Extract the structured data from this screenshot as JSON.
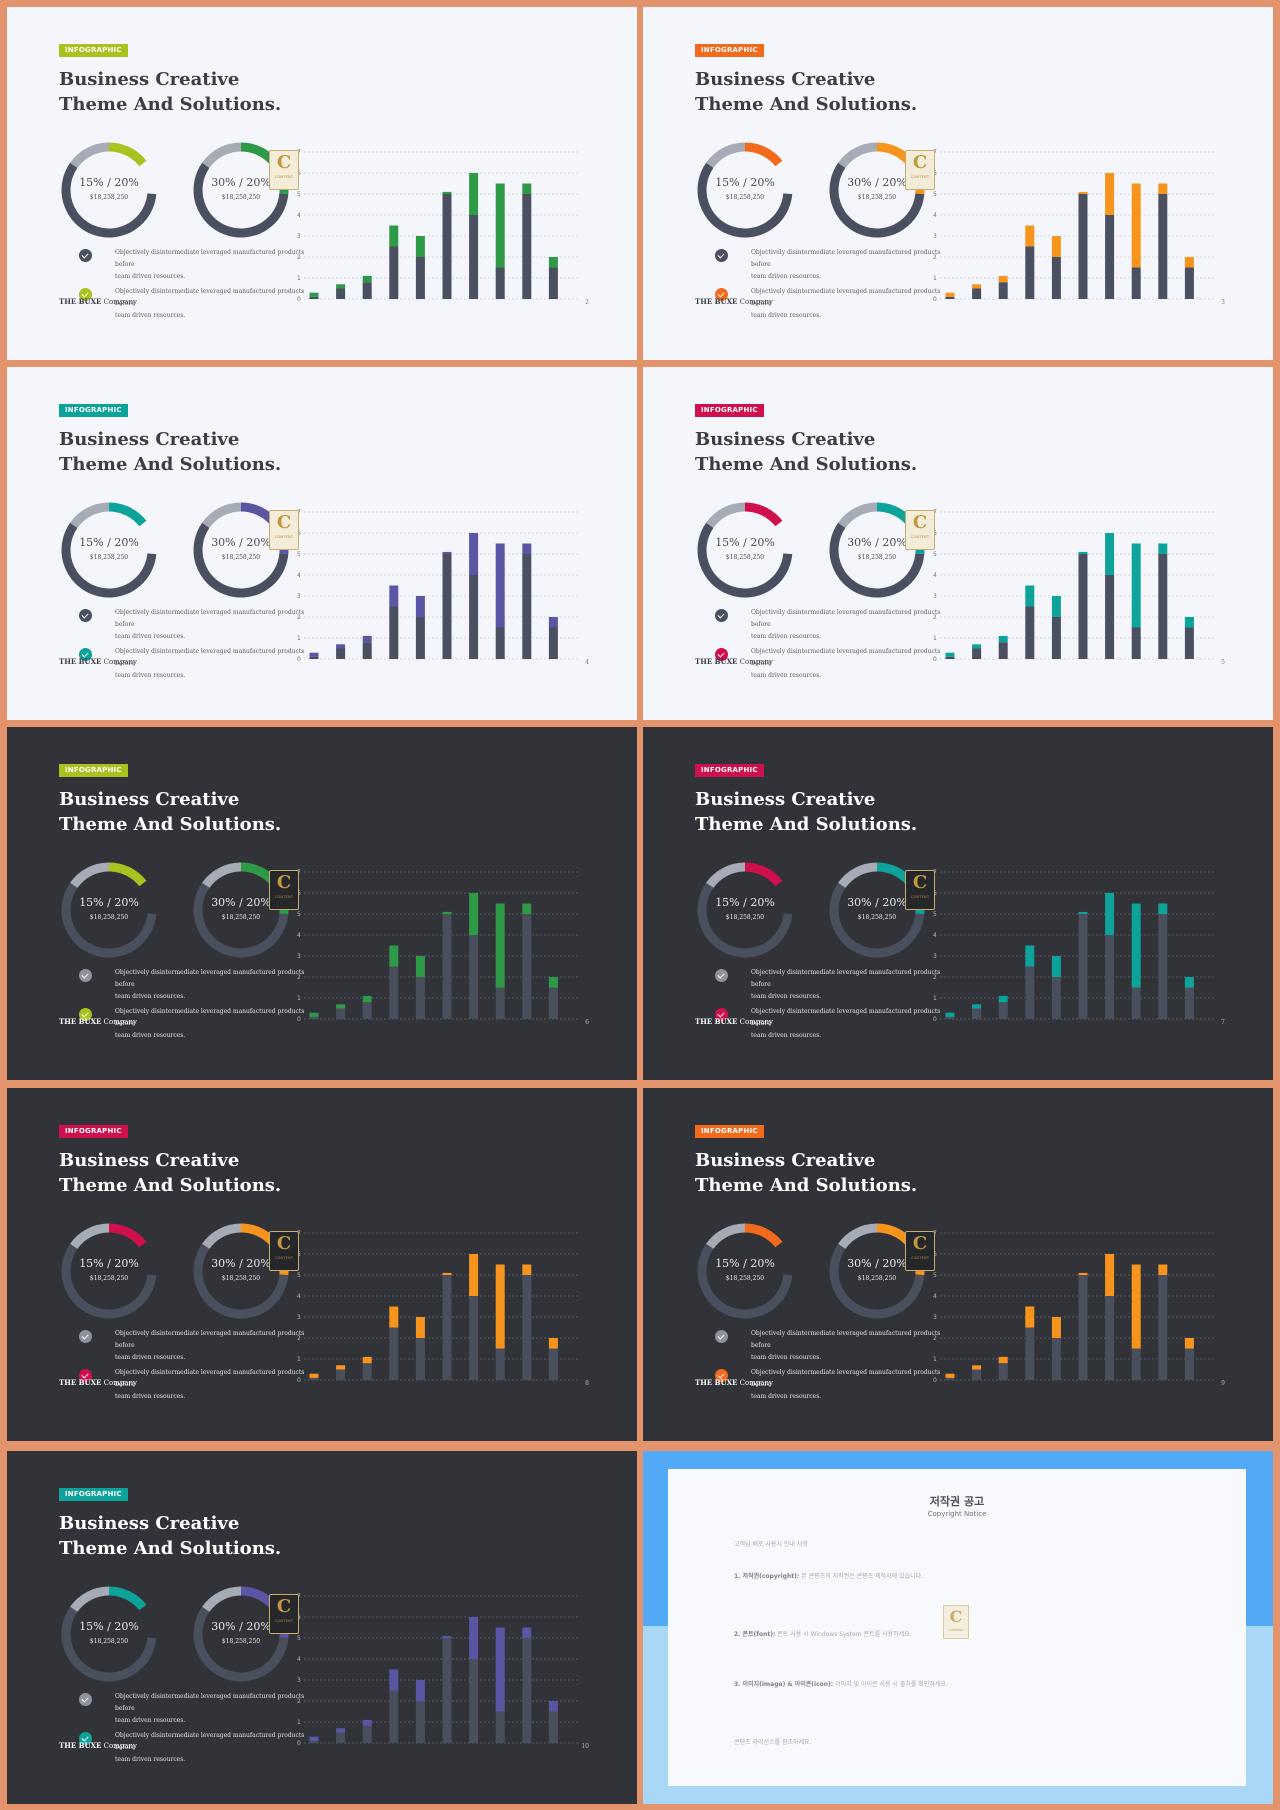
{
  "common": {
    "tag": "INFOGRAPHIC",
    "title_line1": "Business Creative",
    "title_line2": "Theme And Solutions.",
    "donut1_pct": "15% / 20%",
    "donut2_pct": "30% / 20%",
    "donut_amount": "$18,258,250",
    "bullet_line1": "Objectively disintermediate leveraged manufactured products before",
    "bullet_line2": "team driven resources.",
    "footer_bold": "THE BUXE",
    "footer_rest": " Company",
    "logo_letter": "C",
    "logo_text": "CONTENT"
  },
  "palette": {
    "light_bg": "#f5f6fc",
    "dark_bg": "#313338",
    "slate": "#4b5060",
    "ring_gray": "#a7abb5",
    "green": "#2e9a48",
    "lime": "#a9c21f",
    "orange": "#f7941d",
    "orange_red": "#f26a1b",
    "teal": "#0ea39a",
    "purple": "#5a56a4",
    "crimson": "#d0104c"
  },
  "chart_data": {
    "type": "bar",
    "stacked": true,
    "ylim": [
      0,
      7
    ],
    "yticks": [
      "0",
      "1",
      "2",
      "3",
      "4",
      "5",
      "6",
      "7"
    ],
    "grid": true,
    "series": [
      {
        "values": [
          0.1,
          0.5,
          0.8,
          2.5,
          2.0,
          5.0,
          4.0,
          1.5,
          5.0,
          1.5
        ]
      },
      {
        "values": [
          0.2,
          0.2,
          0.3,
          1.0,
          1.0,
          0.1,
          2.0,
          4.0,
          0.5,
          0.5
        ]
      }
    ]
  },
  "slides": [
    {
      "theme": "light",
      "page": "2",
      "tag_color": "#a9c21f",
      "donut1_accent": "#a9c21f",
      "donut2_accent": "#2e9a48",
      "bar_accent": "#2e9a48",
      "check1_color": "#4b5060",
      "check2_color": "#a9c21f"
    },
    {
      "theme": "light",
      "page": "3",
      "tag_color": "#f26a1b",
      "donut1_accent": "#f26a1b",
      "donut2_accent": "#f7941d",
      "bar_accent": "#f7941d",
      "check1_color": "#4b5060",
      "check2_color": "#f26a1b"
    },
    {
      "theme": "light",
      "page": "4",
      "tag_color": "#0ea39a",
      "donut1_accent": "#0ea39a",
      "donut2_accent": "#5a56a4",
      "bar_accent": "#5a56a4",
      "check1_color": "#4b5060",
      "check2_color": "#0ea39a"
    },
    {
      "theme": "light",
      "page": "5",
      "tag_color": "#d0104c",
      "donut1_accent": "#d0104c",
      "donut2_accent": "#0ea39a",
      "bar_accent": "#0ea39a",
      "check1_color": "#4b5060",
      "check2_color": "#d0104c"
    },
    {
      "theme": "dark",
      "page": "6",
      "tag_color": "#a9c21f",
      "donut1_accent": "#a9c21f",
      "donut2_accent": "#2e9a48",
      "bar_accent": "#2e9a48",
      "check1_color": "#8f939d",
      "check2_color": "#a9c21f"
    },
    {
      "theme": "dark",
      "page": "7",
      "tag_color": "#d0104c",
      "donut1_accent": "#d0104c",
      "donut2_accent": "#0ea39a",
      "bar_accent": "#0ea39a",
      "check1_color": "#8f939d",
      "check2_color": "#d0104c"
    },
    {
      "theme": "dark",
      "page": "8",
      "tag_color": "#d0104c",
      "donut1_accent": "#d0104c",
      "donut2_accent": "#f7941d",
      "bar_accent": "#f7941d",
      "check1_color": "#8f939d",
      "check2_color": "#d0104c"
    },
    {
      "theme": "dark",
      "page": "9",
      "tag_color": "#f26a1b",
      "donut1_accent": "#f26a1b",
      "donut2_accent": "#f7941d",
      "bar_accent": "#f7941d",
      "check1_color": "#8f939d",
      "check2_color": "#f26a1b"
    },
    {
      "theme": "dark",
      "page": "10",
      "tag_color": "#0ea39a",
      "donut1_accent": "#0ea39a",
      "donut2_accent": "#5a56a4",
      "bar_accent": "#5a56a4",
      "check1_color": "#8f939d",
      "check2_color": "#0ea39a"
    }
  ],
  "copyright": {
    "title": "저작권 공고",
    "subtitle": "Copyright Notice",
    "intro": "고객님 배포 사용시 안내 사항",
    "p1_head": "1. 저작권(copyright):",
    "p1_body": "본 콘텐츠의 저작권은 콘텐츠 제작사에 있습니다.",
    "p2_head": "2. 폰트(font):",
    "p2_body": "폰트 사용 시 Windows System 폰트를 사용하세요.",
    "p3_head": "3. 이미지(image) & 아이콘(icon):",
    "p3_body": "이미지 및 아이콘 사용 시 출처를 확인하세요.",
    "closing": "콘텐츠 라이선스를 참조하세요."
  }
}
